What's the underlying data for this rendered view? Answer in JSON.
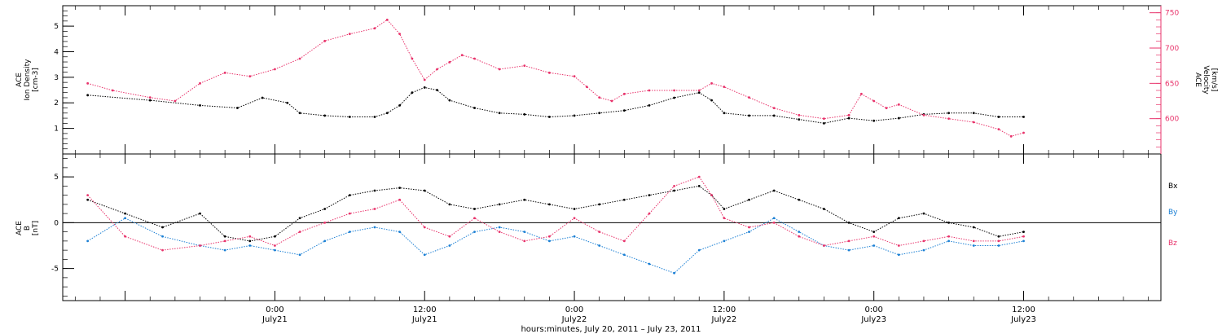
{
  "chart_data": [
    {
      "type": "scatter",
      "panel": "solar-wind",
      "ylabel_left": [
        "ACE",
        "Ion Density",
        "[cm-3]"
      ],
      "ylabel_right": [
        "ACE",
        "Velocity",
        "[km/s]"
      ],
      "ylim_left": [
        0,
        5.8
      ],
      "ylim_right": [
        550,
        760
      ],
      "yticks_left": [
        1,
        2,
        3,
        4,
        5
      ],
      "yticks_right": [
        600,
        650,
        700,
        750
      ],
      "colors": {
        "density": "#000000",
        "velocity": "#e8336b"
      },
      "series": [
        {
          "key": "density",
          "axis": "left",
          "points": [
            [
              -15,
              2.3
            ],
            [
              -10,
              2.1
            ],
            [
              -6,
              1.9
            ],
            [
              -3,
              1.8
            ],
            [
              -1,
              2.2
            ],
            [
              1,
              2.0
            ],
            [
              2,
              1.6
            ],
            [
              4,
              1.5
            ],
            [
              6,
              1.45
            ],
            [
              8,
              1.45
            ],
            [
              9,
              1.6
            ],
            [
              10,
              1.9
            ],
            [
              11,
              2.4
            ],
            [
              12,
              2.6
            ],
            [
              13,
              2.5
            ],
            [
              14,
              2.1
            ],
            [
              16,
              1.8
            ],
            [
              18,
              1.6
            ],
            [
              20,
              1.55
            ],
            [
              22,
              1.45
            ],
            [
              24,
              1.5
            ],
            [
              26,
              1.6
            ],
            [
              28,
              1.7
            ],
            [
              30,
              1.9
            ],
            [
              32,
              2.2
            ],
            [
              34,
              2.4
            ],
            [
              35,
              2.1
            ],
            [
              36,
              1.6
            ],
            [
              38,
              1.5
            ],
            [
              40,
              1.5
            ],
            [
              42,
              1.35
            ],
            [
              44,
              1.2
            ],
            [
              46,
              1.4
            ],
            [
              48,
              1.3
            ],
            [
              50,
              1.4
            ],
            [
              52,
              1.55
            ],
            [
              54,
              1.6
            ],
            [
              56,
              1.6
            ],
            [
              58,
              1.45
            ],
            [
              60,
              1.45
            ]
          ]
        },
        {
          "key": "velocity",
          "axis": "right",
          "points": [
            [
              -15,
              650
            ],
            [
              -13,
              640
            ],
            [
              -10,
              630
            ],
            [
              -8,
              625
            ],
            [
              -6,
              650
            ],
            [
              -4,
              665
            ],
            [
              -2,
              660
            ],
            [
              0,
              670
            ],
            [
              2,
              685
            ],
            [
              4,
              710
            ],
            [
              6,
              720
            ],
            [
              8,
              728
            ],
            [
              9,
              740
            ],
            [
              10,
              720
            ],
            [
              11,
              685
            ],
            [
              12,
              655
            ],
            [
              13,
              670
            ],
            [
              14,
              680
            ],
            [
              15,
              690
            ],
            [
              16,
              685
            ],
            [
              18,
              670
            ],
            [
              20,
              675
            ],
            [
              22,
              665
            ],
            [
              24,
              660
            ],
            [
              25,
              645
            ],
            [
              26,
              630
            ],
            [
              27,
              625
            ],
            [
              28,
              635
            ],
            [
              30,
              640
            ],
            [
              32,
              640
            ],
            [
              34,
              640
            ],
            [
              35,
              650
            ],
            [
              36,
              645
            ],
            [
              38,
              630
            ],
            [
              40,
              615
            ],
            [
              42,
              605
            ],
            [
              44,
              600
            ],
            [
              46,
              605
            ],
            [
              47,
              635
            ],
            [
              48,
              625
            ],
            [
              49,
              615
            ],
            [
              50,
              620
            ],
            [
              52,
              605
            ],
            [
              54,
              600
            ],
            [
              56,
              595
            ],
            [
              58,
              585
            ],
            [
              59,
              575
            ],
            [
              60,
              580
            ]
          ]
        }
      ]
    },
    {
      "type": "scatter",
      "panel": "magnetic-field",
      "ylabel": [
        "ACE",
        "B",
        "[nT]"
      ],
      "ylim": [
        -8.5,
        7.5
      ],
      "yticks": [
        -5,
        0,
        5
      ],
      "zero_line": true,
      "legend": [
        {
          "key": "bx",
          "label": "Bx",
          "color": "#000000"
        },
        {
          "key": "by",
          "label": "By",
          "color": "#1a7fd4"
        },
        {
          "key": "bz",
          "label": "Bz",
          "color": "#e8336b"
        }
      ],
      "series": [
        {
          "key": "bx",
          "points": [
            [
              -15,
              2.5
            ],
            [
              -12,
              1.0
            ],
            [
              -9,
              -0.5
            ],
            [
              -6,
              1.0
            ],
            [
              -4,
              -1.5
            ],
            [
              -2,
              -2.0
            ],
            [
              0,
              -1.5
            ],
            [
              2,
              0.5
            ],
            [
              4,
              1.5
            ],
            [
              6,
              3.0
            ],
            [
              8,
              3.5
            ],
            [
              10,
              3.8
            ],
            [
              12,
              3.5
            ],
            [
              14,
              2.0
            ],
            [
              16,
              1.5
            ],
            [
              18,
              2.0
            ],
            [
              20,
              2.5
            ],
            [
              22,
              2.0
            ],
            [
              24,
              1.5
            ],
            [
              26,
              2.0
            ],
            [
              28,
              2.5
            ],
            [
              30,
              3.0
            ],
            [
              32,
              3.5
            ],
            [
              34,
              4.0
            ],
            [
              35,
              3.0
            ],
            [
              36,
              1.5
            ],
            [
              38,
              2.5
            ],
            [
              40,
              3.5
            ],
            [
              42,
              2.5
            ],
            [
              44,
              1.5
            ],
            [
              46,
              0.0
            ],
            [
              48,
              -1.0
            ],
            [
              50,
              0.5
            ],
            [
              52,
              1.0
            ],
            [
              54,
              0.0
            ],
            [
              56,
              -0.5
            ],
            [
              58,
              -1.5
            ],
            [
              60,
              -1.0
            ]
          ]
        },
        {
          "key": "by",
          "points": [
            [
              -15,
              -2.0
            ],
            [
              -12,
              0.5
            ],
            [
              -9,
              -1.5
            ],
            [
              -6,
              -2.5
            ],
            [
              -4,
              -3.0
            ],
            [
              -2,
              -2.5
            ],
            [
              0,
              -3.0
            ],
            [
              2,
              -3.5
            ],
            [
              4,
              -2.0
            ],
            [
              6,
              -1.0
            ],
            [
              8,
              -0.5
            ],
            [
              10,
              -1.0
            ],
            [
              12,
              -3.5
            ],
            [
              14,
              -2.5
            ],
            [
              16,
              -1.0
            ],
            [
              18,
              -0.5
            ],
            [
              20,
              -1.0
            ],
            [
              22,
              -2.0
            ],
            [
              24,
              -1.5
            ],
            [
              26,
              -2.5
            ],
            [
              28,
              -3.5
            ],
            [
              30,
              -4.5
            ],
            [
              32,
              -5.5
            ],
            [
              34,
              -3.0
            ],
            [
              36,
              -2.0
            ],
            [
              38,
              -1.0
            ],
            [
              40,
              0.5
            ],
            [
              42,
              -1.0
            ],
            [
              44,
              -2.5
            ],
            [
              46,
              -3.0
            ],
            [
              48,
              -2.5
            ],
            [
              50,
              -3.5
            ],
            [
              52,
              -3.0
            ],
            [
              54,
              -2.0
            ],
            [
              56,
              -2.5
            ],
            [
              58,
              -2.5
            ],
            [
              60,
              -2.0
            ]
          ]
        },
        {
          "key": "bz",
          "points": [
            [
              -15,
              3.0
            ],
            [
              -12,
              -1.5
            ],
            [
              -9,
              -3.0
            ],
            [
              -6,
              -2.5
            ],
            [
              -4,
              -2.0
            ],
            [
              -2,
              -1.5
            ],
            [
              0,
              -2.5
            ],
            [
              2,
              -1.0
            ],
            [
              4,
              0.0
            ],
            [
              6,
              1.0
            ],
            [
              8,
              1.5
            ],
            [
              10,
              2.5
            ],
            [
              12,
              -0.5
            ],
            [
              14,
              -1.5
            ],
            [
              16,
              0.5
            ],
            [
              18,
              -1.0
            ],
            [
              20,
              -2.0
            ],
            [
              22,
              -1.5
            ],
            [
              24,
              0.5
            ],
            [
              26,
              -1.0
            ],
            [
              28,
              -2.0
            ],
            [
              30,
              1.0
            ],
            [
              32,
              4.0
            ],
            [
              34,
              5.0
            ],
            [
              35,
              3.0
            ],
            [
              36,
              0.5
            ],
            [
              38,
              -0.5
            ],
            [
              40,
              0.0
            ],
            [
              42,
              -1.5
            ],
            [
              44,
              -2.5
            ],
            [
              46,
              -2.0
            ],
            [
              48,
              -1.5
            ],
            [
              50,
              -2.5
            ],
            [
              52,
              -2.0
            ],
            [
              54,
              -1.5
            ],
            [
              56,
              -2.0
            ],
            [
              58,
              -2.0
            ],
            [
              60,
              -1.5
            ]
          ]
        }
      ]
    }
  ],
  "x_axis": {
    "xlim_hours": [
      -17,
      71
    ],
    "ticks": [
      {
        "h": 0,
        "line1": "0:00",
        "line2": "July21"
      },
      {
        "h": 12,
        "line1": "12:00",
        "line2": "July21"
      },
      {
        "h": 24,
        "line1": "0:00",
        "line2": "July22"
      },
      {
        "h": 36,
        "line1": "12:00",
        "line2": "July22"
      },
      {
        "h": 48,
        "line1": "0:00",
        "line2": "July23"
      },
      {
        "h": 60,
        "line1": "12:00",
        "line2": "July23"
      }
    ],
    "title": "hours:minutes, July 20, 2011 – July 23, 2011"
  }
}
